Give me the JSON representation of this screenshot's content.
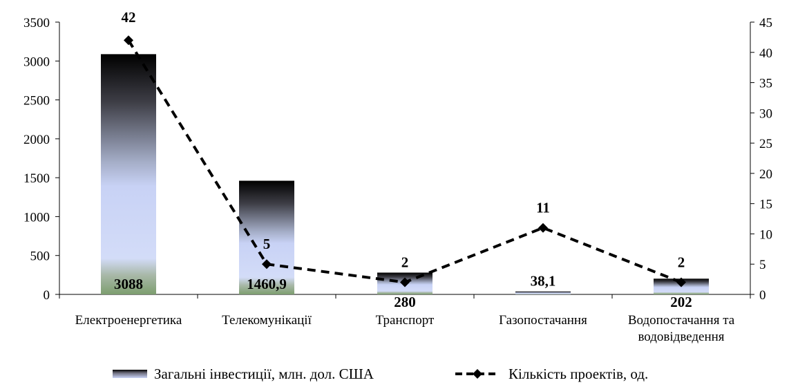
{
  "chart_data": {
    "type": "bar",
    "categories": [
      [
        "Електроенергетика"
      ],
      [
        "Телекомунікації"
      ],
      [
        "Транспорт"
      ],
      [
        "Газопостачання"
      ],
      [
        "Водопостачання та",
        "водовідведення"
      ]
    ],
    "series": [
      {
        "name": "Загальні інвестиції, млн. дол. США",
        "type": "bar",
        "axis": "left",
        "values": [
          3088,
          1460.9,
          280,
          38.1,
          202
        ],
        "labels": [
          "3088",
          "1460,9",
          "280",
          "38,1",
          "202"
        ]
      },
      {
        "name": "Кількість проектів, од.",
        "type": "line",
        "axis": "right",
        "values": [
          42,
          5,
          2,
          11,
          2
        ],
        "labels": [
          "42",
          "5",
          "2",
          "11",
          "2"
        ]
      }
    ],
    "y_left": {
      "ylim": [
        0,
        3500
      ],
      "ticks": [
        0,
        500,
        1000,
        1500,
        2000,
        2500,
        3000,
        3500
      ]
    },
    "y_right": {
      "ylim": [
        0,
        45
      ],
      "ticks": [
        0,
        5,
        10,
        15,
        20,
        25,
        30,
        35,
        40,
        45
      ]
    },
    "grid": false,
    "legend": "bottom",
    "colors": {
      "bar_top": "#000000",
      "bar_mid": "#c8d2f5",
      "bar_bottom": "#7d9e6f",
      "line": "#000000"
    }
  }
}
